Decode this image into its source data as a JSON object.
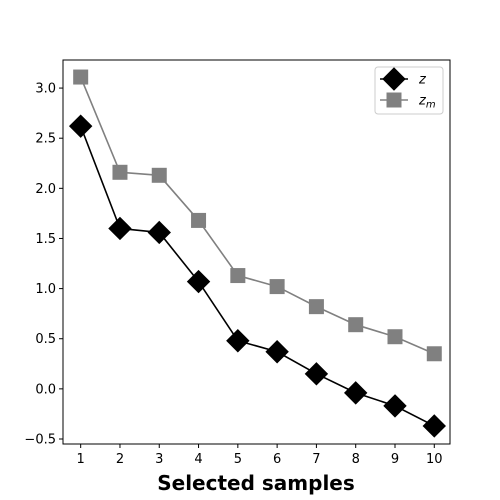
{
  "chart_data": {
    "type": "line",
    "title": "",
    "xlabel": "Selected samples",
    "ylabel": "",
    "x": [
      1,
      2,
      3,
      4,
      5,
      6,
      7,
      8,
      9,
      10
    ],
    "xlim": [
      0.55,
      10.4
    ],
    "ylim": [
      -0.55,
      3.28
    ],
    "xticks": [
      "1",
      "2",
      "3",
      "4",
      "5",
      "6",
      "7",
      "8",
      "9",
      "10"
    ],
    "yticks": [
      -0.5,
      0.0,
      0.5,
      1.0,
      1.5,
      2.0,
      2.5,
      3.0
    ],
    "ytick_labels": [
      "−0.5",
      "0.0",
      "0.5",
      "1.0",
      "1.5",
      "2.0",
      "2.5",
      "3.0"
    ],
    "grid": false,
    "legend_position": "top-right",
    "series": [
      {
        "name": "z",
        "name_base": "z",
        "name_sub": "",
        "color": "#000000",
        "marker": "diamond",
        "values": [
          2.62,
          1.6,
          1.56,
          1.07,
          0.48,
          0.37,
          0.15,
          -0.04,
          -0.17,
          -0.37
        ]
      },
      {
        "name": "z_m",
        "name_base": "z",
        "name_sub": "m",
        "color": "#808080",
        "marker": "square",
        "values": [
          3.11,
          2.16,
          2.13,
          1.68,
          1.13,
          1.02,
          0.82,
          0.64,
          0.52,
          0.35
        ]
      }
    ]
  }
}
